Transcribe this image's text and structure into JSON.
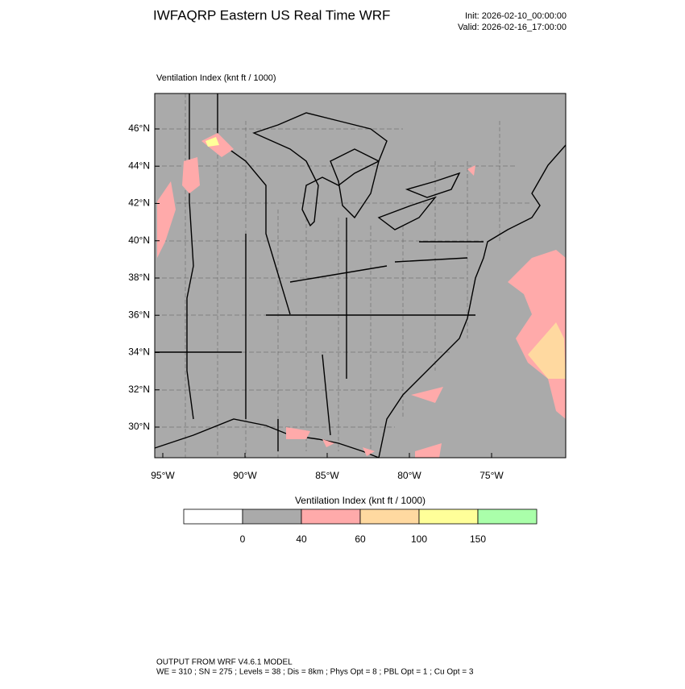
{
  "header": {
    "title": "IWFAQRP Eastern US Real Time WRF",
    "init": "Init: 2026-02-10_00:00:00",
    "valid": "Valid: 2026-02-16_17:00:00"
  },
  "map": {
    "field_label": "Ventilation Index   (knt ft / 1000)",
    "lat_labels": [
      "46°N",
      "44°N",
      "42°N",
      "40°N",
      "38°N",
      "36°N",
      "34°N",
      "32°N",
      "30°N"
    ],
    "lon_labels": [
      "95°W",
      "90°W",
      "85°W",
      "80°W",
      "75°W"
    ]
  },
  "colorbar": {
    "title": "Ventilation Index  (knt ft / 1000)",
    "colors": [
      "#ffffff",
      "#aaaaaa",
      "#ffaaaa",
      "#ffd9a0",
      "#ffff99",
      "#aaffaa"
    ],
    "labels": [
      "0",
      "40",
      "60",
      "100",
      "150"
    ]
  },
  "footer": {
    "line1": "OUTPUT FROM WRF V4.6.1 MODEL",
    "line2": "WE = 310 ; SN = 275 ; Levels = 38 ; Dis = 8km ; Phys Opt = 8 ; PBL Opt = 1 ; Cu Opt = 3"
  }
}
